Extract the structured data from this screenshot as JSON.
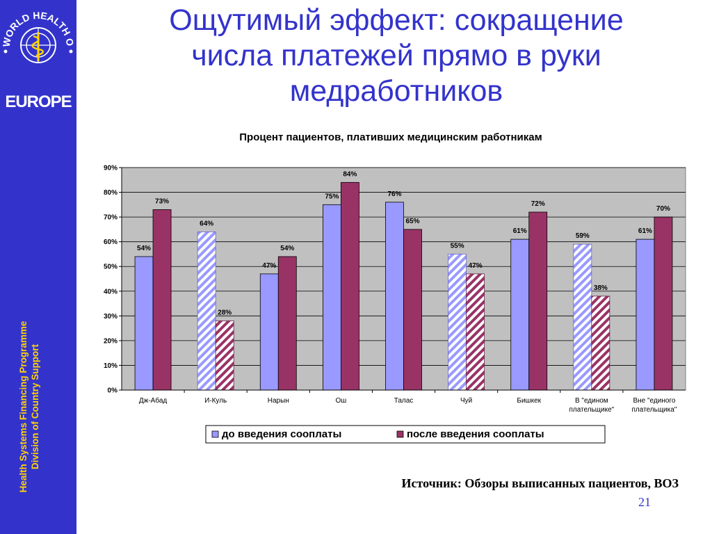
{
  "slide": {
    "title_lines": [
      "Ощутимый эффект: сокращение",
      "числа платежей прямо в руки",
      "медработников"
    ],
    "source": "Источник:  Обзоры выписанных пациентов, ВОЗ",
    "page_number": "21"
  },
  "sidebar": {
    "logo_text": "WORLD HEALTH ORGANIZATION",
    "europe": "EUROPE",
    "program_line1": "Health Systems Financing Programme",
    "program_line2": "Division of Country Support"
  },
  "colors": {
    "sidebar_bg": "#3333cc",
    "sidebar_text": "#ffd400",
    "title": "#3333cc",
    "series_before": "#9999ff",
    "series_after": "#993366",
    "plot_bg": "#c0c0c0"
  },
  "chart_data": {
    "type": "bar",
    "title": "Процент пациентов, плативших медицинским работникам",
    "xlabel": "",
    "ylabel": "",
    "ylim": [
      0,
      90
    ],
    "yticks": [
      "0%",
      "10%",
      "20%",
      "30%",
      "40%",
      "50%",
      "60%",
      "70%",
      "80%",
      "90%"
    ],
    "grid": true,
    "legend_position": "bottom",
    "categories": [
      [
        "Дж-Абад"
      ],
      [
        "И-Куль"
      ],
      [
        "Нарын"
      ],
      [
        "Ош"
      ],
      [
        "Талас"
      ],
      [
        "Чуй"
      ],
      [
        "Бишкек"
      ],
      [
        "В \"едином",
        "плательщике\""
      ],
      [
        "Вне \"единого",
        "плательщика\""
      ]
    ],
    "hatched_categories": [
      1,
      5,
      7
    ],
    "series": [
      {
        "name": "до введения сооплаты",
        "values": [
          54,
          64,
          47,
          75,
          76,
          55,
          61,
          59,
          61
        ],
        "labels": [
          "54%",
          "64%",
          "47%",
          "75%",
          "76%",
          "55%",
          "61%",
          "59%",
          "61%"
        ]
      },
      {
        "name": "после введения сооплаты",
        "values": [
          73,
          28,
          54,
          84,
          65,
          47,
          72,
          38,
          70
        ],
        "labels": [
          "73%",
          "28%",
          "54%",
          "84%",
          "65%",
          "47%",
          "72%",
          "38%",
          "70%"
        ]
      }
    ]
  }
}
